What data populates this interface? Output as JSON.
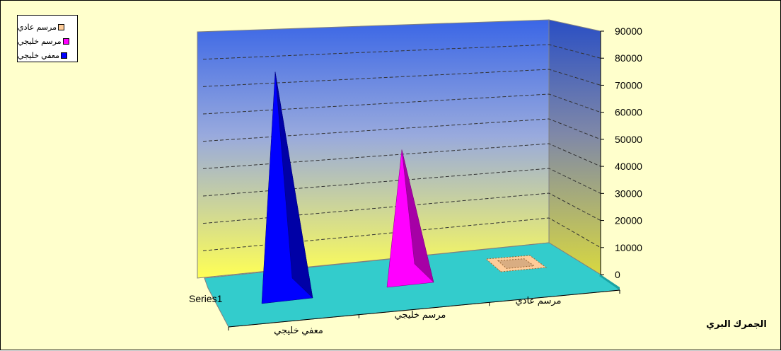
{
  "chart_data": {
    "type": "bar",
    "style": "3d-pyramid",
    "categories": [
      "معفي خليجي",
      "مرسم خليجي",
      "مرسم عادي"
    ],
    "series_axis_label": "Series1",
    "series": [
      {
        "name": "معفي خليجي",
        "color": "#0000ff",
        "values": [
          80000,
          null,
          null
        ]
      },
      {
        "name": "مرسم خليجي",
        "color": "#ff00ff",
        "values": [
          null,
          46000,
          null
        ]
      },
      {
        "name": "مرسم عادي",
        "color": "#ffcc99",
        "values": [
          null,
          null,
          1000
        ]
      }
    ],
    "legend_order": [
      "مرسم عادي",
      "مرسم خليجي",
      "معفي خليجي"
    ],
    "ylim": [
      0,
      90000
    ],
    "yticks": [
      "90000",
      "80000",
      "70000",
      "60000",
      "50000",
      "40000",
      "30000",
      "20000",
      "10000",
      "0"
    ],
    "ytick_values": [
      90000,
      80000,
      70000,
      60000,
      50000,
      40000,
      30000,
      20000,
      10000,
      0
    ],
    "xlabel": "الجمرك البري",
    "grid": true,
    "legend_position": "top-left",
    "colors": {
      "chart_bg": "#ffffcc",
      "wall_top": "#3d6ee8",
      "wall_bottom": "#ffff66",
      "floor": "#33cccc",
      "gridline": "#333333"
    }
  }
}
